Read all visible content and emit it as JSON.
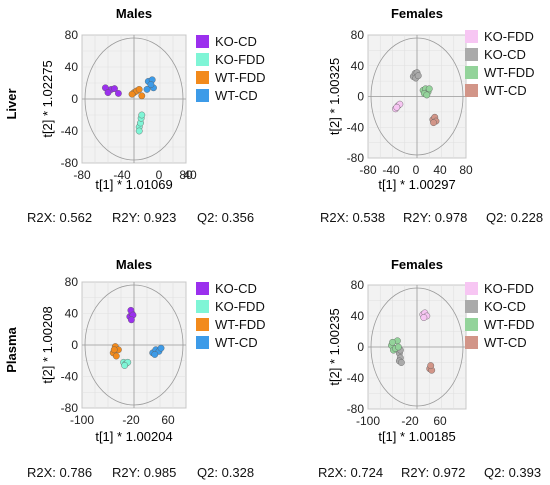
{
  "row_labels": [
    "Liver",
    "Plasma"
  ],
  "chart_data": [
    {
      "type": "scatter",
      "title": "Males",
      "xlabel": "t[1] * 1.01069",
      "ylabel": "t[2] * 1.02275",
      "xlim": [
        -80,
        80
      ],
      "ylim": [
        -80,
        80
      ],
      "xticks": [
        "-80",
        "-40",
        "0",
        "40",
        "80"
      ],
      "yticks": [
        "80",
        "40",
        "0",
        "-40",
        "-80"
      ],
      "grid": true,
      "legend_position": "right",
      "stats": {
        "r2x": "R2X: 0.562",
        "r2y": "R2Y: 0.923",
        "q2": "Q2: 0.356"
      },
      "series": [
        {
          "name": "KO-CD",
          "color": "#9b30ee",
          "points": [
            [
              -44,
              14
            ],
            [
              -35,
              12
            ],
            [
              -30,
              13
            ],
            [
              -24,
              7
            ],
            [
              -40,
              8
            ]
          ]
        },
        {
          "name": "KO-FDD",
          "color": "#7ff5d6",
          "points": [
            [
              8,
              -35
            ],
            [
              10,
              -30
            ],
            [
              11,
              -24
            ],
            [
              8,
              -40
            ],
            [
              12,
              -20
            ]
          ]
        },
        {
          "name": "WT-FDD",
          "color": "#f28a1c",
          "points": [
            [
              0,
              8
            ],
            [
              4,
              10
            ],
            [
              8,
              12
            ],
            [
              12,
              4
            ],
            [
              -3,
              6
            ]
          ]
        },
        {
          "name": "WT-CD",
          "color": "#3d9be8",
          "points": [
            [
              22,
              22
            ],
            [
              28,
              24
            ],
            [
              30,
              14
            ],
            [
              26,
              18
            ],
            [
              20,
              12
            ]
          ]
        }
      ]
    },
    {
      "type": "scatter",
      "title": "Females",
      "xlabel": "t[1] * 1.00297",
      "ylabel": "t[2] * 1.00325",
      "xlim": [
        -80,
        80
      ],
      "ylim": [
        -80,
        80
      ],
      "xticks": [
        "-80",
        "-40",
        "0",
        "40",
        "80"
      ],
      "yticks": [
        "80",
        "40",
        "0",
        "-40",
        "-80"
      ],
      "grid": true,
      "legend_position": "right",
      "stats": {
        "r2x": "R2X: 0.538",
        "r2y": "R2Y: 0.978",
        "q2": "Q2: 0.228"
      },
      "series": [
        {
          "name": "KO-FDD",
          "color": "#f7c6f3",
          "points": [
            [
              -35,
              -16
            ],
            [
              -31,
              -12
            ],
            [
              -28,
              -10
            ],
            [
              -33,
              -14
            ]
          ]
        },
        {
          "name": "KO-CD",
          "color": "#aaaaaa",
          "points": [
            [
              -6,
              26
            ],
            [
              -3,
              30
            ],
            [
              0,
              31
            ],
            [
              -2,
              24
            ],
            [
              2,
              27
            ]
          ]
        },
        {
          "name": "WT-FDD",
          "color": "#93d39a",
          "points": [
            [
              10,
              8
            ],
            [
              14,
              10
            ],
            [
              18,
              6
            ],
            [
              20,
              10
            ],
            [
              12,
              4
            ],
            [
              16,
              2
            ]
          ]
        },
        {
          "name": "WT-CD",
          "color": "#d29588",
          "points": [
            [
              26,
              -30
            ],
            [
              29,
              -27
            ],
            [
              31,
              -32
            ],
            [
              27,
              -34
            ]
          ]
        }
      ]
    },
    {
      "type": "scatter",
      "title": "Males",
      "xlabel": "t[1] * 1.00204",
      "ylabel": "t[2] * 1.00208",
      "xlim": [
        -100,
        100
      ],
      "ylim": [
        -80,
        80
      ],
      "xticks": [
        "-100",
        "-20",
        "60"
      ],
      "yticks": [
        "80",
        "40",
        "0",
        "-40",
        "-80"
      ],
      "grid": true,
      "legend_position": "right",
      "stats": {
        "r2x": "R2X: 0.786",
        "r2y": "R2Y: 0.985",
        "q2": "Q2: 0.328"
      },
      "series": [
        {
          "name": "KO-CD",
          "color": "#9b30ee",
          "points": [
            [
              -8,
              36
            ],
            [
              -4,
              40
            ],
            [
              -6,
              44
            ],
            [
              -2,
              38
            ],
            [
              -5,
              32
            ]
          ]
        },
        {
          "name": "KO-FDD",
          "color": "#7ff5d6",
          "points": [
            [
              -20,
              -22
            ],
            [
              -16,
              -24
            ],
            [
              -12,
              -22
            ],
            [
              -18,
              -26
            ]
          ]
        },
        {
          "name": "WT-FDD",
          "color": "#f28a1c",
          "points": [
            [
              -40,
              -10
            ],
            [
              -36,
              -2
            ],
            [
              -34,
              -14
            ],
            [
              -30,
              -6
            ],
            [
              -38,
              -6
            ]
          ]
        },
        {
          "name": "WT-CD",
          "color": "#3d9be8",
          "points": [
            [
              36,
              -10
            ],
            [
              42,
              -6
            ],
            [
              48,
              -8
            ],
            [
              52,
              -4
            ],
            [
              40,
              -12
            ]
          ]
        }
      ]
    },
    {
      "type": "scatter",
      "title": "Females",
      "xlabel": "t[1] * 1.00185",
      "ylabel": "t[2] * 1.00235",
      "xlim": [
        -100,
        100
      ],
      "ylim": [
        -80,
        80
      ],
      "xticks": [
        "-100",
        "-20",
        "60"
      ],
      "yticks": [
        "80",
        "40",
        "0",
        "-40",
        "-80"
      ],
      "grid": true,
      "legend_position": "right",
      "stats": {
        "r2x": "R2X: 0.724",
        "r2y": "R2Y: 0.972",
        "q2": "Q2: 0.393"
      },
      "series": [
        {
          "name": "KO-FDD",
          "color": "#f7c6f3",
          "points": [
            [
              12,
              42
            ],
            [
              16,
              44
            ],
            [
              20,
              40
            ],
            [
              14,
              38
            ]
          ]
        },
        {
          "name": "KO-CD",
          "color": "#aaaaaa",
          "points": [
            [
              -36,
              -8
            ],
            [
              -34,
              -14
            ],
            [
              -36,
              -18
            ],
            [
              -32,
              -20
            ],
            [
              -34,
              -4
            ]
          ]
        },
        {
          "name": "WT-FDD",
          "color": "#93d39a",
          "points": [
            [
              -52,
              2
            ],
            [
              -48,
              -4
            ],
            [
              -40,
              8
            ],
            [
              -44,
              -2
            ],
            [
              -38,
              0
            ],
            [
              -50,
              6
            ]
          ]
        },
        {
          "name": "WT-CD",
          "color": "#d29588",
          "points": [
            [
              26,
              -28
            ],
            [
              30,
              -30
            ],
            [
              28,
              -24
            ]
          ]
        }
      ]
    }
  ]
}
